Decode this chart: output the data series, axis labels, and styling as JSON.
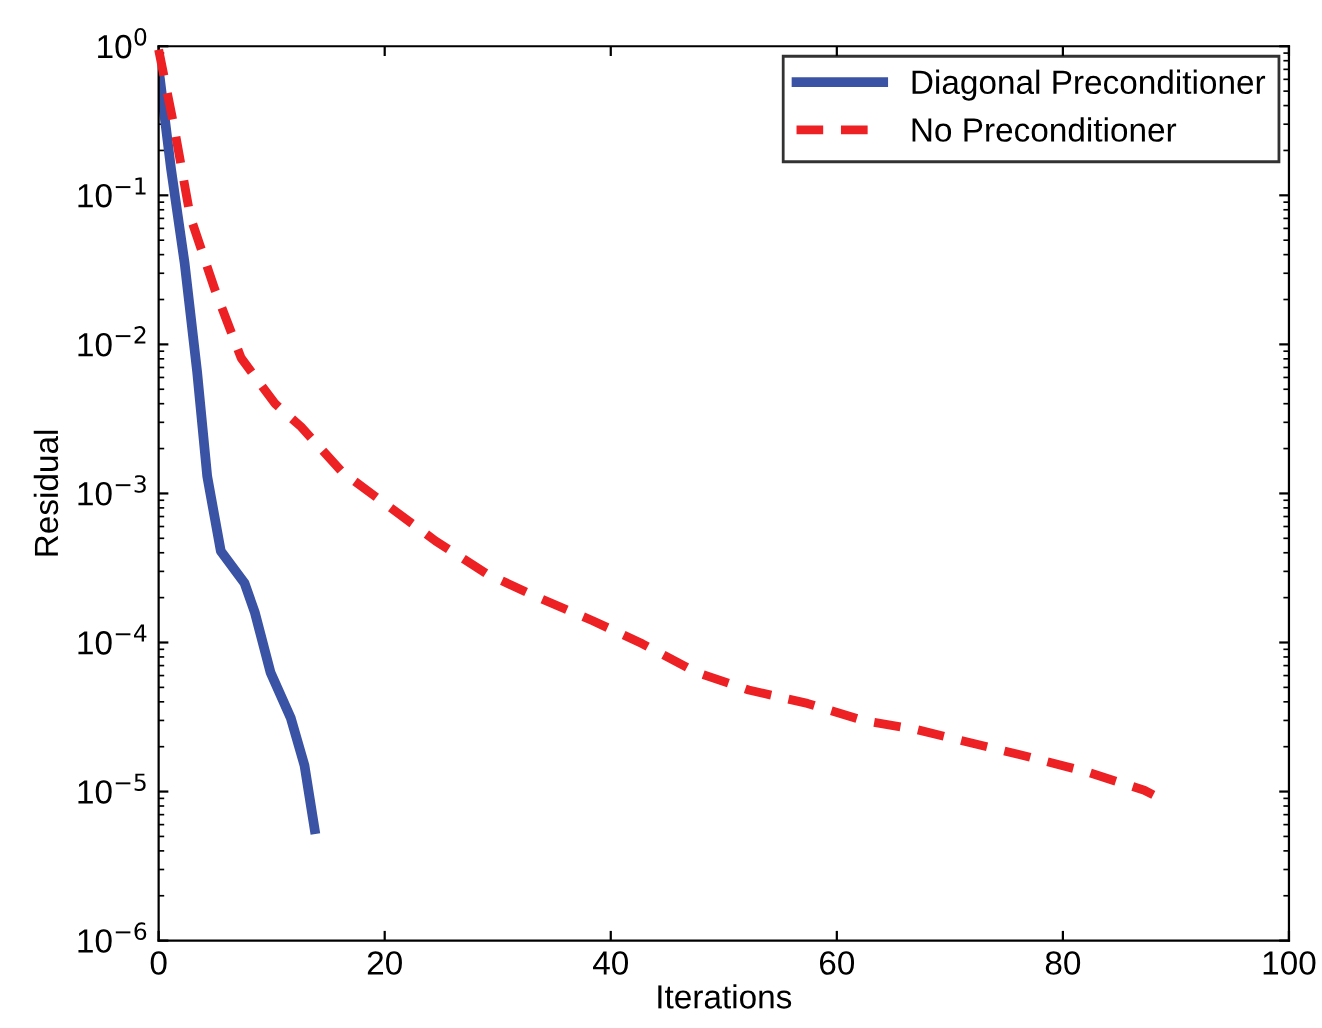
{
  "chart_data": {
    "type": "line",
    "xlabel": "Iterations",
    "ylabel": "Residual",
    "log": "y",
    "xlim": [
      0,
      100
    ],
    "xticks": [
      0,
      20,
      40,
      60,
      80,
      100
    ],
    "ylim": [
      1e-06,
      1
    ],
    "yticks": [
      {
        "value": 1,
        "label": "10$^{0}$"
      },
      {
        "value": 0.1,
        "label": "10$^{−1}$"
      },
      {
        "value": 0.01,
        "label": "10$^{−2}$"
      },
      {
        "value": 0.001,
        "label": "10$^{−3}$"
      },
      {
        "value": 0.0001,
        "label": "10$^{−4}$"
      },
      {
        "value": 1e-05,
        "label": "10$^{−5}$"
      },
      {
        "value": 1e-06,
        "label": "10$^{−6}$"
      }
    ],
    "grid": false,
    "legend": "top right",
    "marker": "none",
    "series": [
      {
        "name": "Diagonal Preconditioner",
        "color": "#3a53a4",
        "line_style": "solid",
        "x": [
          0,
          1.1,
          2.3,
          3.4,
          4.3,
          5.5,
          7.6,
          8.5,
          9.9,
          11.7,
          12.9,
          13.8
        ],
        "values": [
          0.71,
          0.15,
          0.035,
          0.0066,
          0.0013,
          0.00041,
          0.00025,
          0.00016,
          6.3e-05,
          3.1e-05,
          1.5e-05,
          5.6e-06
        ]
      },
      {
        "name": "No Preconditioner",
        "color": "#ed2024",
        "line_style": "dashed",
        "x": [
          0,
          1.4,
          2.8,
          5,
          7.3,
          10.3,
          12.6,
          16.2,
          24.5,
          29,
          33.6,
          38.4,
          42.8,
          47.6,
          52.2,
          57.4,
          62.3,
          67.1,
          72.1,
          77.1,
          82.2,
          87.2,
          88
        ],
        "values": [
          0.95,
          0.28,
          0.072,
          0.023,
          0.0081,
          0.004,
          0.0028,
          0.0014,
          0.00048,
          0.00029,
          0.0002,
          0.00014,
          9.8e-05,
          6.3e-05,
          4.8e-05,
          3.9e-05,
          3e-05,
          2.6e-05,
          2.1e-05,
          1.7e-05,
          1.35e-05,
          1.02e-05,
          9.5e-06
        ]
      }
    ]
  }
}
